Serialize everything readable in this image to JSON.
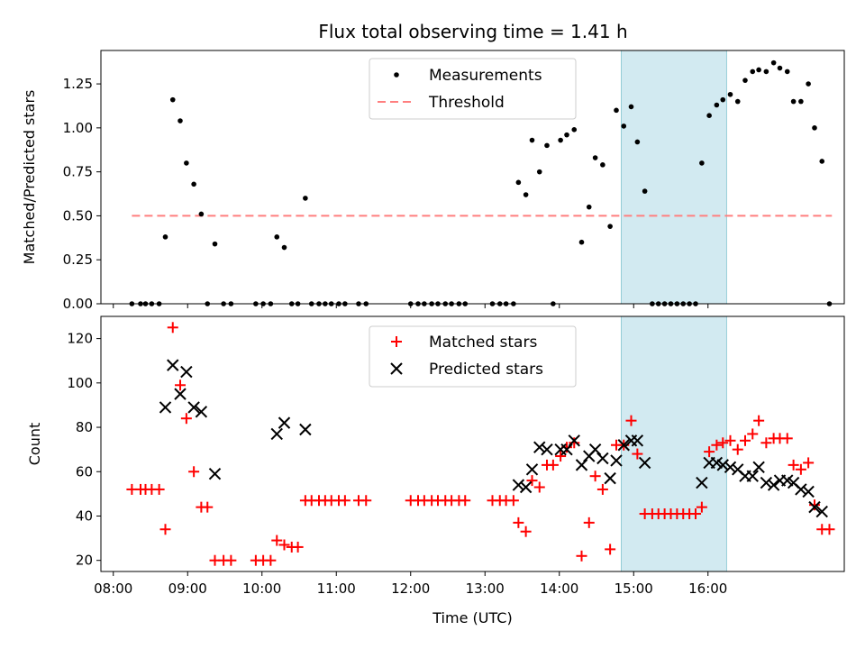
{
  "chart_data": [
    {
      "type": "scatter",
      "title": "Flux total observing time = 1.41 h",
      "xlabel": "",
      "ylabel": "Matched/Predicted stars",
      "ylim": [
        0,
        1.44
      ],
      "y_ticks": [
        0,
        0.25,
        0.5,
        0.75,
        1.0,
        1.25
      ],
      "y_tick_labels": [
        "0.00",
        "0.25",
        "0.50",
        "0.75",
        "1.00",
        "1.25"
      ],
      "highlight_region": {
        "x": [
          "14:50",
          "16:15"
        ],
        "color": "#add8e6"
      },
      "legend": {
        "placement": "upper center",
        "entries": [
          "Measurements",
          "Threshold"
        ]
      },
      "series": [
        {
          "name": "Measurements",
          "marker": "dot",
          "color": "#000000",
          "points": [
            [
              "08:15",
              0
            ],
            [
              "08:22",
              0
            ],
            [
              "08:26",
              0
            ],
            [
              "08:31",
              0
            ],
            [
              "08:37",
              0
            ],
            [
              "08:42",
              0.38
            ],
            [
              "08:48",
              1.16
            ],
            [
              "08:54",
              1.04
            ],
            [
              "08:59",
              0.8
            ],
            [
              "09:05",
              0.68
            ],
            [
              "09:11",
              0.51
            ],
            [
              "09:16",
              0
            ],
            [
              "09:22",
              0.34
            ],
            [
              "09:29",
              0
            ],
            [
              "09:35",
              0
            ],
            [
              "09:55",
              0
            ],
            [
              "10:01",
              0
            ],
            [
              "10:07",
              0
            ],
            [
              "10:12",
              0.38
            ],
            [
              "10:18",
              0.32
            ],
            [
              "10:24",
              0
            ],
            [
              "10:29",
              0
            ],
            [
              "10:35",
              0.6
            ],
            [
              "10:40",
              0
            ],
            [
              "10:46",
              0
            ],
            [
              "10:51",
              0
            ],
            [
              "10:56",
              0
            ],
            [
              "11:02",
              0
            ],
            [
              "11:07",
              0
            ],
            [
              "11:18",
              0
            ],
            [
              "11:24",
              0
            ],
            [
              "12:00",
              0
            ],
            [
              "12:06",
              0
            ],
            [
              "12:11",
              0
            ],
            [
              "12:17",
              0
            ],
            [
              "12:22",
              0
            ],
            [
              "12:28",
              0
            ],
            [
              "12:33",
              0
            ],
            [
              "12:39",
              0
            ],
            [
              "12:44",
              0
            ],
            [
              "13:06",
              0
            ],
            [
              "13:12",
              0
            ],
            [
              "13:17",
              0
            ],
            [
              "13:23",
              0
            ],
            [
              "13:27",
              0.69
            ],
            [
              "13:33",
              0.62
            ],
            [
              "13:38",
              0.93
            ],
            [
              "13:44",
              0.75
            ],
            [
              "13:50",
              0.9
            ],
            [
              "13:55",
              0
            ],
            [
              "14:01",
              0.93
            ],
            [
              "14:06",
              0.96
            ],
            [
              "14:12",
              0.99
            ],
            [
              "14:18",
              0.35
            ],
            [
              "14:24",
              0.55
            ],
            [
              "14:29",
              0.83
            ],
            [
              "14:35",
              0.79
            ],
            [
              "14:41",
              0.44
            ],
            [
              "14:46",
              1.1
            ],
            [
              "14:52",
              1.01
            ],
            [
              "14:58",
              1.12
            ],
            [
              "15:03",
              0.92
            ],
            [
              "15:09",
              0.64
            ],
            [
              "15:15",
              0
            ],
            [
              "15:20",
              0
            ],
            [
              "15:25",
              0
            ],
            [
              "15:30",
              0
            ],
            [
              "15:35",
              0
            ],
            [
              "15:40",
              0
            ],
            [
              "15:45",
              0
            ],
            [
              "15:50",
              0
            ],
            [
              "15:55",
              0.8
            ],
            [
              "16:01",
              1.07
            ],
            [
              "16:07",
              1.13
            ],
            [
              "16:12",
              1.16
            ],
            [
              "16:18",
              1.19
            ],
            [
              "16:24",
              1.15
            ],
            [
              "16:30",
              1.27
            ],
            [
              "16:36",
              1.32
            ],
            [
              "16:41",
              1.33
            ],
            [
              "16:47",
              1.32
            ],
            [
              "16:53",
              1.37
            ],
            [
              "16:58",
              1.34
            ],
            [
              "17:04",
              1.32
            ],
            [
              "17:09",
              1.15
            ],
            [
              "17:15",
              1.15
            ],
            [
              "17:21",
              1.25
            ],
            [
              "17:26",
              1.0
            ],
            [
              "17:32",
              0.81
            ],
            [
              "17:38",
              0
            ]
          ]
        },
        {
          "name": "Threshold",
          "style": "dashed",
          "color": "#ff7f7f",
          "x": [
            "08:15",
            "17:40"
          ],
          "value": 0.5
        }
      ]
    },
    {
      "type": "scatter",
      "title": "",
      "xlabel": "Time (UTC)",
      "ylabel": "Count",
      "ylim": [
        15,
        130
      ],
      "y_ticks": [
        20,
        40,
        60,
        80,
        100,
        120
      ],
      "y_tick_labels": [
        "20",
        "40",
        "60",
        "80",
        "100",
        "120"
      ],
      "x_range": [
        "07:50",
        "17:50"
      ],
      "x_ticks": [
        "08:00",
        "09:00",
        "10:00",
        "11:00",
        "12:00",
        "13:00",
        "14:00",
        "15:00",
        "16:00"
      ],
      "x_tick_labels": [
        "08:00",
        "09:00",
        "10:00",
        "11:00",
        "12:00",
        "13:00",
        "14:00",
        "15:00",
        "16:00"
      ],
      "highlight_region": {
        "x": [
          "14:50",
          "16:15"
        ],
        "color": "#add8e6"
      },
      "legend": {
        "placement": "upper center",
        "entries": [
          "Matched stars",
          "Predicted stars"
        ]
      },
      "series": [
        {
          "name": "Matched stars",
          "marker": "plus",
          "color": "#ff0000",
          "points": [
            [
              "08:15",
              52
            ],
            [
              "08:22",
              52
            ],
            [
              "08:26",
              52
            ],
            [
              "08:31",
              52
            ],
            [
              "08:37",
              52
            ],
            [
              "08:42",
              34
            ],
            [
              "08:48",
              125
            ],
            [
              "08:54",
              99
            ],
            [
              "08:59",
              84
            ],
            [
              "09:05",
              60
            ],
            [
              "09:11",
              44
            ],
            [
              "09:16",
              44
            ],
            [
              "09:22",
              20
            ],
            [
              "09:29",
              20
            ],
            [
              "09:35",
              20
            ],
            [
              "09:55",
              20
            ],
            [
              "10:01",
              20
            ],
            [
              "10:07",
              20
            ],
            [
              "10:12",
              29
            ],
            [
              "10:18",
              27
            ],
            [
              "10:24",
              26
            ],
            [
              "10:29",
              26
            ],
            [
              "10:35",
              47
            ],
            [
              "10:40",
              47
            ],
            [
              "10:46",
              47
            ],
            [
              "10:51",
              47
            ],
            [
              "10:56",
              47
            ],
            [
              "11:02",
              47
            ],
            [
              "11:07",
              47
            ],
            [
              "11:18",
              47
            ],
            [
              "11:24",
              47
            ],
            [
              "12:00",
              47
            ],
            [
              "12:06",
              47
            ],
            [
              "12:11",
              47
            ],
            [
              "12:17",
              47
            ],
            [
              "12:22",
              47
            ],
            [
              "12:28",
              47
            ],
            [
              "12:33",
              47
            ],
            [
              "12:39",
              47
            ],
            [
              "12:44",
              47
            ],
            [
              "13:06",
              47
            ],
            [
              "13:12",
              47
            ],
            [
              "13:17",
              47
            ],
            [
              "13:23",
              47
            ],
            [
              "13:27",
              37
            ],
            [
              "13:33",
              33
            ],
            [
              "13:38",
              56
            ],
            [
              "13:44",
              53
            ],
            [
              "13:50",
              63
            ],
            [
              "13:55",
              63
            ],
            [
              "14:01",
              67
            ],
            [
              "14:06",
              71
            ],
            [
              "14:12",
              73
            ],
            [
              "14:18",
              22
            ],
            [
              "14:24",
              37
            ],
            [
              "14:29",
              58
            ],
            [
              "14:35",
              52
            ],
            [
              "14:41",
              25
            ],
            [
              "14:46",
              72
            ],
            [
              "14:52",
              72
            ],
            [
              "14:58",
              83
            ],
            [
              "15:03",
              68
            ],
            [
              "15:09",
              41
            ],
            [
              "15:15",
              41
            ],
            [
              "15:20",
              41
            ],
            [
              "15:25",
              41
            ],
            [
              "15:30",
              41
            ],
            [
              "15:35",
              41
            ],
            [
              "15:40",
              41
            ],
            [
              "15:45",
              41
            ],
            [
              "15:50",
              41
            ],
            [
              "15:55",
              44
            ],
            [
              "16:01",
              69
            ],
            [
              "16:07",
              72
            ],
            [
              "16:12",
              73
            ],
            [
              "16:18",
              74
            ],
            [
              "16:24",
              70
            ],
            [
              "16:30",
              74
            ],
            [
              "16:36",
              77
            ],
            [
              "16:41",
              83
            ],
            [
              "16:47",
              73
            ],
            [
              "16:53",
              75
            ],
            [
              "16:58",
              75
            ],
            [
              "17:04",
              75
            ],
            [
              "17:09",
              63
            ],
            [
              "17:15",
              61
            ],
            [
              "17:21",
              64
            ],
            [
              "17:26",
              45
            ],
            [
              "17:32",
              34
            ],
            [
              "17:38",
              34
            ]
          ]
        },
        {
          "name": "Predicted stars",
          "marker": "x",
          "color": "#000000",
          "points": [
            [
              "08:42",
              89
            ],
            [
              "08:48",
              108
            ],
            [
              "08:54",
              95
            ],
            [
              "08:59",
              105
            ],
            [
              "09:05",
              89
            ],
            [
              "09:11",
              87
            ],
            [
              "09:22",
              59
            ],
            [
              "10:12",
              77
            ],
            [
              "10:18",
              82
            ],
            [
              "10:35",
              79
            ],
            [
              "13:27",
              54
            ],
            [
              "13:33",
              53
            ],
            [
              "13:38",
              61
            ],
            [
              "13:44",
              71
            ],
            [
              "13:50",
              70
            ],
            [
              "14:01",
              70
            ],
            [
              "14:06",
              70
            ],
            [
              "14:12",
              74
            ],
            [
              "14:18",
              63
            ],
            [
              "14:24",
              67
            ],
            [
              "14:29",
              70
            ],
            [
              "14:35",
              66
            ],
            [
              "14:41",
              57
            ],
            [
              "14:46",
              65
            ],
            [
              "14:52",
              72
            ],
            [
              "14:58",
              74
            ],
            [
              "15:03",
              74
            ],
            [
              "15:09",
              64
            ],
            [
              "15:55",
              55
            ],
            [
              "16:01",
              64
            ],
            [
              "16:07",
              64
            ],
            [
              "16:12",
              63
            ],
            [
              "16:18",
              62
            ],
            [
              "16:24",
              61
            ],
            [
              "16:30",
              58
            ],
            [
              "16:36",
              58
            ],
            [
              "16:41",
              62
            ],
            [
              "16:47",
              55
            ],
            [
              "16:53",
              54
            ],
            [
              "16:58",
              56
            ],
            [
              "17:04",
              56
            ],
            [
              "17:09",
              55
            ],
            [
              "17:15",
              52
            ],
            [
              "17:21",
              51
            ],
            [
              "17:26",
              44
            ],
            [
              "17:32",
              42
            ]
          ]
        }
      ]
    }
  ]
}
